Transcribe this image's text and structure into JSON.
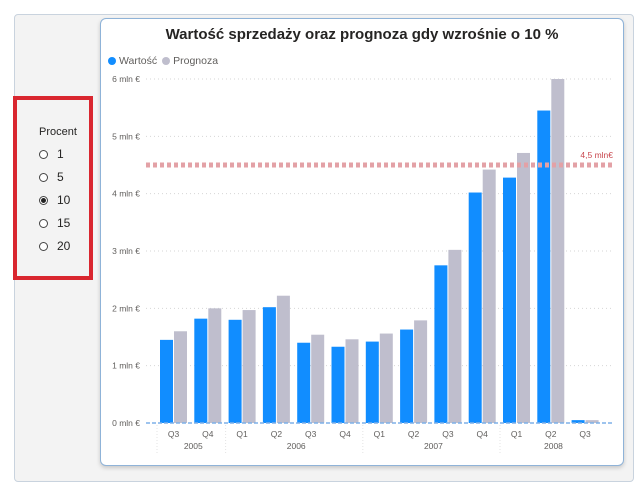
{
  "slicer": {
    "title": "Procent",
    "options": [
      "1",
      "5",
      "10",
      "15",
      "20"
    ],
    "selected": "10"
  },
  "chart_data": {
    "type": "bar",
    "title": "Wartość sprzedaży oraz prognoza gdy wzrośnie o 10 %",
    "legend_position": "top-left",
    "colors": {
      "Wartość": "#118dff",
      "Prognoza": "#bfbecd",
      "reference": "#e3a1a6"
    },
    "categories": [
      {
        "quarter": "Q3",
        "year": "2005"
      },
      {
        "quarter": "Q4",
        "year": "2005"
      },
      {
        "quarter": "Q1",
        "year": "2006"
      },
      {
        "quarter": "Q2",
        "year": "2006"
      },
      {
        "quarter": "Q3",
        "year": "2006"
      },
      {
        "quarter": "Q4",
        "year": "2006"
      },
      {
        "quarter": "Q1",
        "year": "2007"
      },
      {
        "quarter": "Q2",
        "year": "2007"
      },
      {
        "quarter": "Q3",
        "year": "2007"
      },
      {
        "quarter": "Q4",
        "year": "2007"
      },
      {
        "quarter": "Q1",
        "year": "2008"
      },
      {
        "quarter": "Q2",
        "year": "2008"
      },
      {
        "quarter": "Q3",
        "year": "2008"
      }
    ],
    "years": [
      "2005",
      "2006",
      "2007",
      "2008"
    ],
    "series": [
      {
        "name": "Wartość",
        "values": [
          1.45,
          1.82,
          1.8,
          2.02,
          1.4,
          1.33,
          1.42,
          1.63,
          2.75,
          4.02,
          4.28,
          5.45,
          0.05
        ]
      },
      {
        "name": "Prognoza",
        "values": [
          1.6,
          2.0,
          1.97,
          2.22,
          1.54,
          1.46,
          1.56,
          1.79,
          3.02,
          4.42,
          4.71,
          6.0,
          0.05
        ]
      }
    ],
    "ylim": [
      0,
      6
    ],
    "yticks": [
      "0 mln €",
      "1 mln €",
      "2 mln €",
      "3 mln €",
      "4 mln €",
      "5 mln €",
      "6 mln €"
    ],
    "reference_line": {
      "value": 4.5,
      "label": "4,5 mln€"
    },
    "grid": true
  }
}
